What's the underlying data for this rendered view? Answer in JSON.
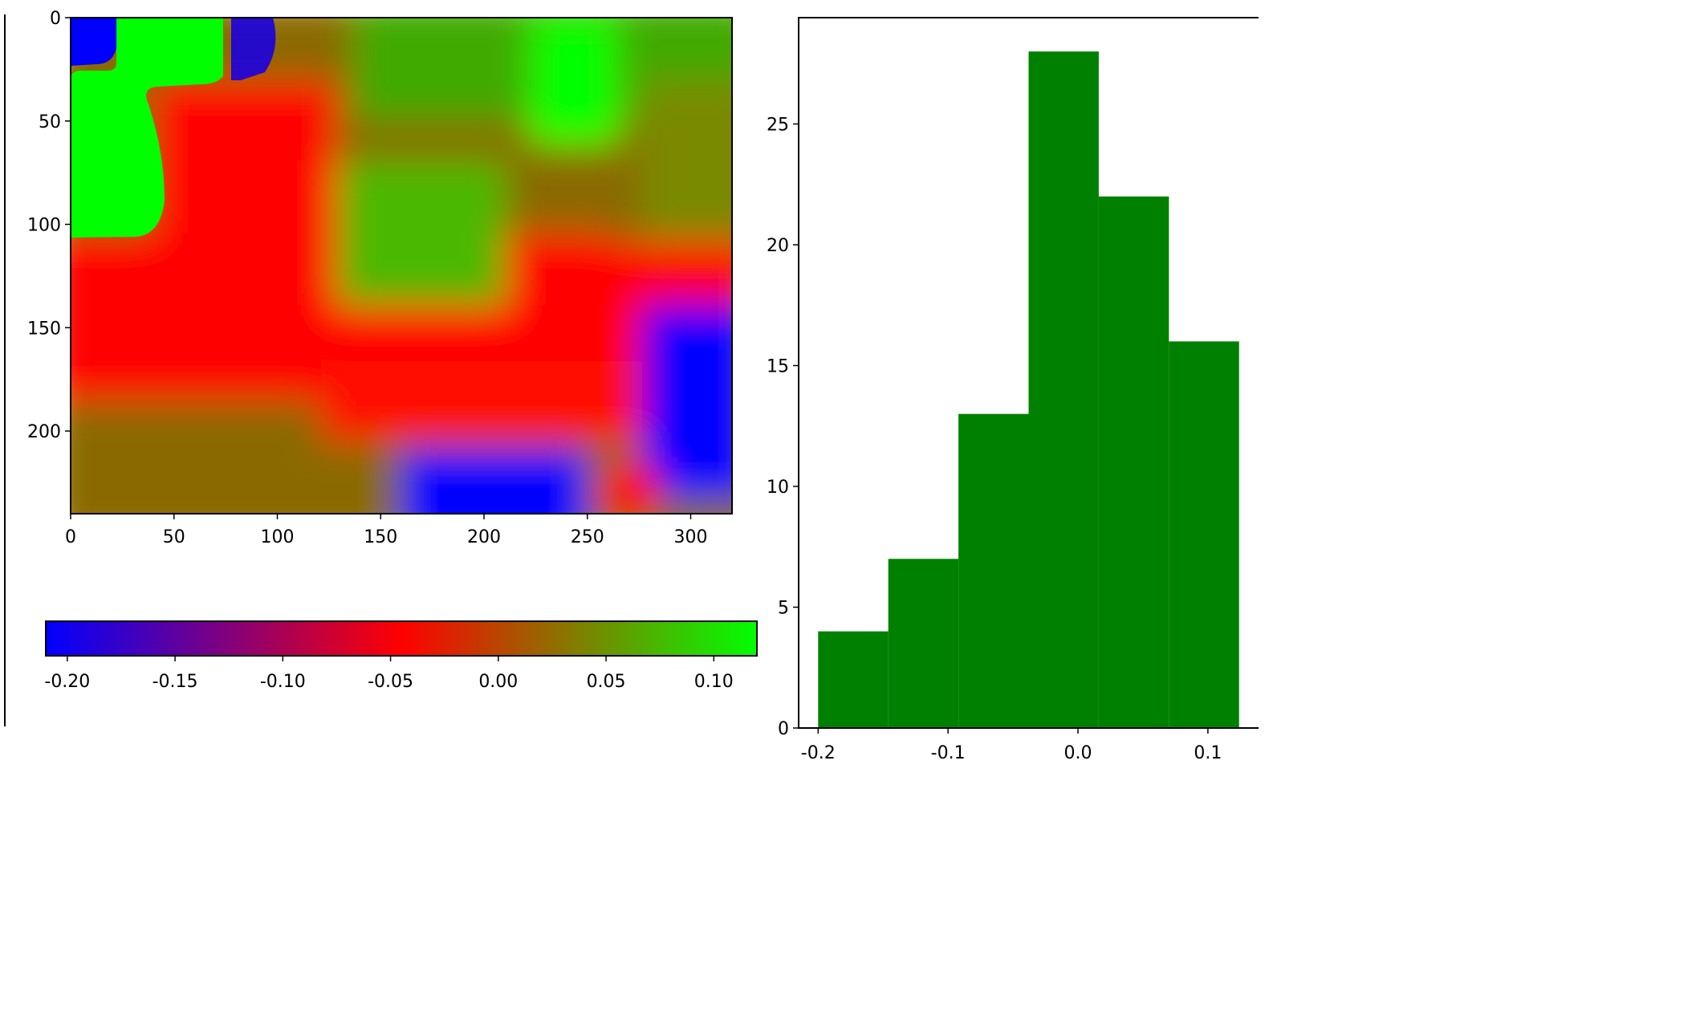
{
  "chart_data": [
    {
      "type": "heatmap",
      "title": "",
      "xlabel": "",
      "ylabel": "",
      "xlim": [
        0,
        320
      ],
      "ylim": [
        240,
        0
      ],
      "xticks": [
        "0",
        "50",
        "100",
        "150",
        "200",
        "250",
        "300"
      ],
      "yticks": [
        "0",
        "50",
        "100",
        "150",
        "200"
      ],
      "colormap": [
        "#0000ff",
        "#ff0000",
        "#00ff00"
      ],
      "regions": [
        {
          "label": "high",
          "value": 0.12,
          "x": [
            0,
            22
          ],
          "y": [
            30,
            105
          ]
        },
        {
          "label": "high",
          "value": 0.12,
          "x": [
            22,
            75
          ],
          "y": [
            0,
            30
          ]
        },
        {
          "label": "low",
          "value": -0.2,
          "x": [
            0,
            20
          ],
          "y": [
            0,
            25
          ]
        },
        {
          "label": "low",
          "value": -0.2,
          "x": [
            75,
            100
          ],
          "y": [
            0,
            30
          ]
        },
        {
          "label": "low",
          "value": -0.2,
          "x": [
            280,
            320
          ],
          "y": [
            140,
            230
          ]
        },
        {
          "label": "low",
          "value": -0.2,
          "x": [
            160,
            240
          ],
          "y": [
            215,
            240
          ]
        }
      ]
    },
    {
      "type": "colorbar",
      "ticks": [
        "-0.20",
        "-0.15",
        "-0.10",
        "-0.05",
        "0.00",
        "0.05",
        "0.10"
      ],
      "tick_values": [
        -0.2,
        -0.15,
        -0.1,
        -0.05,
        0.0,
        0.05,
        0.1
      ],
      "range": [
        -0.21,
        0.12
      ],
      "colors": [
        "#0000ff",
        "#ff0000",
        "#00ff00"
      ]
    },
    {
      "type": "bar",
      "title": "",
      "xlabel": "",
      "ylabel": "",
      "bin_edges": [
        -0.2,
        -0.146,
        -0.092,
        -0.038,
        0.016,
        0.07,
        0.124
      ],
      "values": [
        4,
        7,
        13,
        28,
        22,
        16
      ],
      "color": "#008000",
      "xlim": [
        -0.215,
        0.139
      ],
      "ylim": [
        0,
        29.4
      ],
      "xticks": [
        "-0.2",
        "-0.1",
        "0.0",
        "0.1"
      ],
      "xtick_values": [
        -0.2,
        -0.1,
        0.0,
        0.1
      ],
      "yticks": [
        "0",
        "5",
        "10",
        "15",
        "20",
        "25"
      ],
      "ytick_values": [
        0,
        5,
        10,
        15,
        20,
        25
      ]
    }
  ]
}
